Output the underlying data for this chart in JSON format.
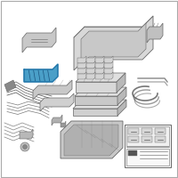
{
  "background_color": "#ffffff",
  "border_color": "#cccccc",
  "outline_color": "#666666",
  "light_gray": "#cccccc",
  "mid_gray": "#aaaaaa",
  "dark_gray": "#888888",
  "very_light_gray": "#e8e8e8",
  "highlight_blue": "#4a9fc8",
  "highlight_blue_dark": "#2277aa",
  "black": "#333333",
  "white": "#ffffff"
}
